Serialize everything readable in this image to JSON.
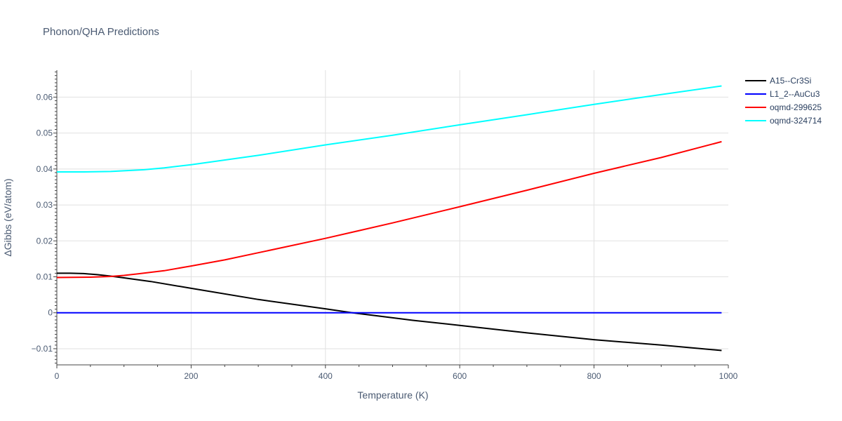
{
  "chart_data": {
    "type": "line",
    "title": "Phonon/QHA Predictions",
    "xlabel": "Temperature (K)",
    "ylabel": "ΔGibbs (eV/atom)",
    "xlim": [
      0,
      1000
    ],
    "ylim": [
      -0.0145,
      0.0675
    ],
    "xticks": [
      0,
      200,
      400,
      600,
      800,
      1000
    ],
    "xtick_labels": [
      "0",
      "200",
      "400",
      "600",
      "800",
      "1000"
    ],
    "yticks": [
      -0.01,
      0,
      0.01,
      0.02,
      0.03,
      0.04,
      0.05,
      0.06
    ],
    "ytick_labels": [
      "−0.01",
      "0",
      "0.01",
      "0.02",
      "0.03",
      "0.04",
      "0.05",
      "0.06"
    ],
    "grid": true,
    "legend_position": "top-right",
    "series": [
      {
        "name": "A15--Cr3Si",
        "color": "#000000",
        "x": [
          0,
          20,
          40,
          60,
          80,
          100,
          140,
          200,
          300,
          400,
          440,
          500,
          530,
          600,
          700,
          800,
          900,
          990
        ],
        "y": [
          0.011,
          0.011,
          0.0109,
          0.0106,
          0.0102,
          0.0097,
          0.0087,
          0.0068,
          0.0037,
          0.0011,
          0.0,
          -0.0014,
          -0.0021,
          -0.0035,
          -0.0056,
          -0.0075,
          -0.009,
          -0.0105
        ]
      },
      {
        "name": "L1_2--AuCu3",
        "color": "#0000ff",
        "x": [
          0,
          990
        ],
        "y": [
          0,
          0
        ]
      },
      {
        "name": "oqmd-299625",
        "color": "#ff0000",
        "x": [
          0,
          50,
          80,
          100,
          120,
          160,
          200,
          250,
          300,
          400,
          500,
          600,
          700,
          800,
          900,
          990
        ],
        "y": [
          0.0098,
          0.0099,
          0.0101,
          0.0104,
          0.0108,
          0.0117,
          0.013,
          0.0147,
          0.0167,
          0.0207,
          0.025,
          0.0295,
          0.0341,
          0.0388,
          0.0432,
          0.0476
        ]
      },
      {
        "name": "oqmd-324714",
        "color": "#00ffff",
        "x": [
          0,
          40,
          80,
          100,
          130,
          160,
          200,
          300,
          400,
          500,
          600,
          700,
          800,
          900,
          990
        ],
        "y": [
          0.0392,
          0.0392,
          0.0393,
          0.0395,
          0.0398,
          0.0403,
          0.0412,
          0.0438,
          0.0467,
          0.0494,
          0.0523,
          0.0551,
          0.058,
          0.0607,
          0.0631
        ]
      }
    ]
  }
}
